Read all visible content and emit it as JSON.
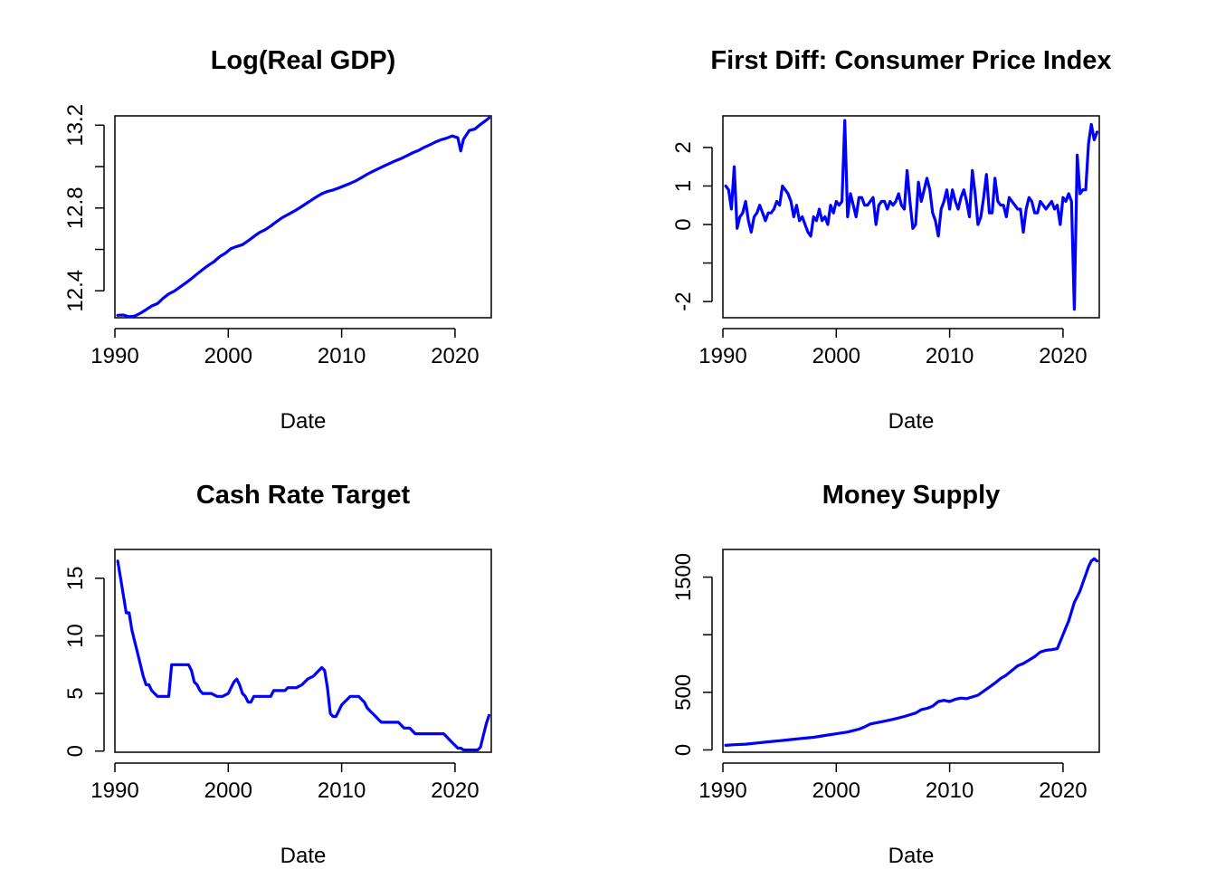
{
  "chart_data": [
    {
      "type": "line",
      "title": "Log(Real GDP)",
      "xlabel": "Date",
      "ylabel": "",
      "color": "#0000ff",
      "xlim": [
        1990,
        2023.2
      ],
      "ylim": [
        12.27,
        13.245
      ],
      "xticks": [
        1990,
        2000,
        2010,
        2020
      ],
      "xtick_labels": [
        "1990",
        "2000",
        "2010",
        "2020"
      ],
      "yticks": [
        12.4,
        12.6,
        12.8,
        13.0,
        13.2
      ],
      "ytick_labels": [
        "12.4",
        "",
        "12.8",
        "",
        "13.2"
      ],
      "x": [
        1990.25,
        1990.75,
        1991.25,
        1991.75,
        1992.25,
        1992.75,
        1993.25,
        1993.75,
        1994.25,
        1994.75,
        1995.25,
        1995.75,
        1996.25,
        1996.75,
        1997.25,
        1997.75,
        1998.25,
        1998.75,
        1999.25,
        1999.75,
        2000.25,
        2000.75,
        2001.25,
        2001.75,
        2002.25,
        2002.75,
        2003.25,
        2003.75,
        2004.25,
        2004.75,
        2005.25,
        2005.75,
        2006.25,
        2006.75,
        2007.25,
        2007.75,
        2008.25,
        2008.75,
        2009.25,
        2009.75,
        2010.25,
        2010.75,
        2011.25,
        2011.75,
        2012.25,
        2012.75,
        2013.25,
        2013.75,
        2014.25,
        2014.75,
        2015.25,
        2015.75,
        2016.25,
        2016.75,
        2017.25,
        2017.75,
        2018.25,
        2018.75,
        2019.25,
        2019.75,
        2020.25,
        2020.5,
        2020.75,
        2021.25,
        2021.75,
        2022.25,
        2022.75,
        2023.0
      ],
      "y": [
        12.282,
        12.283,
        12.275,
        12.278,
        12.292,
        12.309,
        12.327,
        12.338,
        12.364,
        12.385,
        12.399,
        12.418,
        12.438,
        12.459,
        12.481,
        12.503,
        12.523,
        12.541,
        12.565,
        12.582,
        12.604,
        12.614,
        12.623,
        12.641,
        12.662,
        12.682,
        12.695,
        12.713,
        12.734,
        12.753,
        12.768,
        12.783,
        12.799,
        12.817,
        12.835,
        12.853,
        12.869,
        12.88,
        12.887,
        12.897,
        12.908,
        12.919,
        12.931,
        12.947,
        12.963,
        12.977,
        12.99,
        13.003,
        13.016,
        13.028,
        13.039,
        13.052,
        13.066,
        13.077,
        13.092,
        13.104,
        13.118,
        13.129,
        13.137,
        13.148,
        13.139,
        13.076,
        13.132,
        13.174,
        13.181,
        13.204,
        13.224,
        13.235
      ]
    },
    {
      "type": "line",
      "title": "First Diff: Consumer Price Index",
      "xlabel": "Date",
      "ylabel": "",
      "color": "#0000ff",
      "xlim": [
        1990,
        2023.2
      ],
      "ylim": [
        -2.42,
        2.82
      ],
      "xticks": [
        1990,
        2000,
        2010,
        2020
      ],
      "xtick_labels": [
        "1990",
        "2000",
        "2010",
        "2020"
      ],
      "yticks": [
        -2,
        -1,
        0,
        1,
        2
      ],
      "ytick_labels": [
        "-2",
        "",
        "0",
        "1",
        "2"
      ],
      "x": [
        1990.25,
        1990.5,
        1990.75,
        1991.0,
        1991.25,
        1991.5,
        1991.75,
        1992.0,
        1992.25,
        1992.5,
        1992.75,
        1993.0,
        1993.25,
        1993.5,
        1993.75,
        1994.0,
        1994.25,
        1994.5,
        1994.75,
        1995.0,
        1995.25,
        1995.5,
        1995.75,
        1996.0,
        1996.25,
        1996.5,
        1996.75,
        1997.0,
        1997.25,
        1997.5,
        1997.75,
        1998.0,
        1998.25,
        1998.5,
        1998.75,
        1999.0,
        1999.25,
        1999.5,
        1999.75,
        2000.0,
        2000.25,
        2000.5,
        2000.75,
        2001.0,
        2001.25,
        2001.5,
        2001.75,
        2002.0,
        2002.25,
        2002.5,
        2002.75,
        2003.0,
        2003.25,
        2003.5,
        2003.75,
        2004.0,
        2004.25,
        2004.5,
        2004.75,
        2005.0,
        2005.25,
        2005.5,
        2005.75,
        2006.0,
        2006.25,
        2006.5,
        2006.75,
        2007.0,
        2007.25,
        2007.5,
        2007.75,
        2008.0,
        2008.25,
        2008.5,
        2008.75,
        2009.0,
        2009.25,
        2009.5,
        2009.75,
        2010.0,
        2010.25,
        2010.5,
        2010.75,
        2011.0,
        2011.25,
        2011.5,
        2011.75,
        2012.0,
        2012.25,
        2012.5,
        2012.75,
        2013.0,
        2013.25,
        2013.5,
        2013.75,
        2014.0,
        2014.25,
        2014.5,
        2014.75,
        2015.0,
        2015.25,
        2015.5,
        2015.75,
        2016.0,
        2016.25,
        2016.5,
        2016.75,
        2017.0,
        2017.25,
        2017.5,
        2017.75,
        2018.0,
        2018.25,
        2018.5,
        2018.75,
        2019.0,
        2019.25,
        2019.5,
        2019.75,
        2020.0,
        2020.25,
        2020.5,
        2020.75,
        2021.0,
        2021.25,
        2021.5,
        2021.75,
        2022.0,
        2022.25,
        2022.5,
        2022.75,
        2023.0
      ],
      "y": [
        1.0,
        0.9,
        0.4,
        1.5,
        -0.1,
        0.2,
        0.3,
        0.6,
        0.1,
        -0.2,
        0.2,
        0.3,
        0.5,
        0.3,
        0.1,
        0.3,
        0.3,
        0.4,
        0.6,
        0.5,
        1.0,
        0.9,
        0.8,
        0.6,
        0.2,
        0.5,
        0.1,
        0.2,
        0.0,
        -0.2,
        -0.3,
        0.2,
        0.1,
        0.4,
        0.1,
        0.2,
        0.0,
        0.5,
        0.3,
        0.6,
        0.5,
        0.6,
        2.7,
        0.2,
        0.8,
        0.5,
        0.2,
        0.7,
        0.7,
        0.5,
        0.5,
        0.6,
        0.7,
        0.0,
        0.5,
        0.6,
        0.6,
        0.4,
        0.6,
        0.5,
        0.6,
        0.8,
        0.5,
        0.4,
        1.4,
        0.6,
        -0.1,
        0.0,
        1.1,
        0.6,
        0.9,
        1.2,
        0.9,
        0.3,
        0.1,
        -0.3,
        0.4,
        0.6,
        0.9,
        0.4,
        0.9,
        0.6,
        0.4,
        0.7,
        0.9,
        0.6,
        0.2,
        1.4,
        0.8,
        0.0,
        0.2,
        0.7,
        1.3,
        0.3,
        0.3,
        1.2,
        0.6,
        0.5,
        0.5,
        0.2,
        0.7,
        0.6,
        0.5,
        0.4,
        0.4,
        -0.2,
        0.4,
        0.7,
        0.6,
        0.3,
        0.3,
        0.6,
        0.5,
        0.4,
        0.5,
        0.6,
        0.4,
        0.5,
        0.0,
        0.7,
        0.6,
        0.8,
        0.6,
        -2.2,
        1.8,
        0.8,
        0.9,
        0.9,
        2.1,
        2.6,
        2.2,
        2.4
      ]
    },
    {
      "type": "line",
      "title": "Cash Rate Target",
      "xlabel": "Date",
      "ylabel": "",
      "color": "#0000ff",
      "xlim": [
        1990,
        2023.2
      ],
      "ylim": [
        -0.1,
        17.5
      ],
      "xticks": [
        1990,
        2000,
        2010,
        2020
      ],
      "xtick_labels": [
        "1990",
        "2000",
        "2010",
        "2020"
      ],
      "yticks": [
        0,
        5,
        10,
        15
      ],
      "ytick_labels": [
        "0",
        "5",
        "10",
        "15"
      ],
      "x": [
        1990.25,
        1990.5,
        1990.75,
        1991.0,
        1991.25,
        1991.5,
        1991.75,
        1992.0,
        1992.25,
        1992.5,
        1992.75,
        1993.0,
        1993.25,
        1993.5,
        1993.75,
        1994.0,
        1994.25,
        1994.5,
        1994.75,
        1995.0,
        1995.5,
        1996.0,
        1996.5,
        1996.75,
        1997.0,
        1997.25,
        1997.5,
        1997.75,
        1998.0,
        1998.5,
        1999.0,
        1999.5,
        2000.0,
        2000.25,
        2000.5,
        2000.75,
        2001.0,
        2001.25,
        2001.5,
        2001.75,
        2002.0,
        2002.25,
        2002.5,
        2003.0,
        2003.5,
        2003.75,
        2004.0,
        2005.0,
        2005.25,
        2006.0,
        2006.5,
        2007.0,
        2007.5,
        2008.0,
        2008.25,
        2008.5,
        2008.75,
        2009.0,
        2009.25,
        2009.5,
        2009.75,
        2010.0,
        2010.25,
        2010.5,
        2010.75,
        2011.0,
        2011.5,
        2011.75,
        2012.0,
        2012.25,
        2012.5,
        2012.75,
        2013.0,
        2013.25,
        2013.5,
        2013.75,
        2014.0,
        2015.0,
        2015.25,
        2015.5,
        2016.0,
        2016.25,
        2016.5,
        2016.75,
        2017.0,
        2018.0,
        2019.0,
        2019.25,
        2019.5,
        2019.75,
        2020.0,
        2020.25,
        2020.5,
        2020.75,
        2021.0,
        2021.5,
        2022.0,
        2022.25,
        2022.5,
        2022.75,
        2023.0
      ],
      "y": [
        16.5,
        15.0,
        13.5,
        12.0,
        12.0,
        10.5,
        9.5,
        8.5,
        7.5,
        6.5,
        5.75,
        5.75,
        5.25,
        5.0,
        4.75,
        4.75,
        4.75,
        4.75,
        4.75,
        7.5,
        7.5,
        7.5,
        7.5,
        7.0,
        6.0,
        5.75,
        5.25,
        5.0,
        5.0,
        5.0,
        4.75,
        4.75,
        5.0,
        5.5,
        6.0,
        6.25,
        5.75,
        5.0,
        4.75,
        4.25,
        4.25,
        4.75,
        4.75,
        4.75,
        4.75,
        4.75,
        5.25,
        5.25,
        5.5,
        5.5,
        5.75,
        6.25,
        6.5,
        7.0,
        7.25,
        7.0,
        5.5,
        3.25,
        3.0,
        3.0,
        3.5,
        4.0,
        4.25,
        4.5,
        4.75,
        4.75,
        4.75,
        4.5,
        4.25,
        3.75,
        3.5,
        3.25,
        3.0,
        2.75,
        2.5,
        2.5,
        2.5,
        2.5,
        2.25,
        2.0,
        2.0,
        1.75,
        1.5,
        1.5,
        1.5,
        1.5,
        1.5,
        1.25,
        1.0,
        0.75,
        0.5,
        0.25,
        0.25,
        0.1,
        0.1,
        0.1,
        0.1,
        0.35,
        1.35,
        2.35,
        3.1
      ]
    },
    {
      "type": "line",
      "title": "Money Supply",
      "xlabel": "Date",
      "ylabel": "",
      "color": "#0000ff",
      "xlim": [
        1990,
        2023.2
      ],
      "ylim": [
        -20,
        1740
      ],
      "xticks": [
        1990,
        2000,
        2010,
        2020
      ],
      "xtick_labels": [
        "1990",
        "2000",
        "2010",
        "2020"
      ],
      "yticks": [
        0,
        500,
        1000,
        1500
      ],
      "ytick_labels": [
        "0",
        "500",
        "",
        "1500"
      ],
      "x": [
        1990.25,
        1991.0,
        1992.0,
        1993.0,
        1994.0,
        1995.0,
        1996.0,
        1997.0,
        1998.0,
        1999.0,
        2000.0,
        2001.0,
        2002.0,
        2002.5,
        2003.0,
        2004.0,
        2005.0,
        2006.0,
        2007.0,
        2007.5,
        2008.0,
        2008.5,
        2009.0,
        2009.5,
        2010.0,
        2010.5,
        2011.0,
        2011.5,
        2012.0,
        2012.5,
        2013.0,
        2013.5,
        2014.0,
        2014.5,
        2015.0,
        2015.5,
        2016.0,
        2016.5,
        2017.0,
        2017.5,
        2018.0,
        2018.5,
        2019.0,
        2019.5,
        2020.0,
        2020.25,
        2020.5,
        2020.75,
        2021.0,
        2021.25,
        2021.5,
        2021.75,
        2022.0,
        2022.25,
        2022.5,
        2022.75,
        2023.0
      ],
      "y": [
        40,
        45,
        50,
        60,
        70,
        80,
        90,
        100,
        110,
        125,
        140,
        155,
        180,
        200,
        225,
        245,
        265,
        290,
        320,
        350,
        360,
        380,
        420,
        430,
        420,
        440,
        450,
        445,
        460,
        475,
        510,
        545,
        580,
        620,
        650,
        690,
        730,
        750,
        780,
        810,
        850,
        865,
        870,
        880,
        1000,
        1060,
        1120,
        1200,
        1280,
        1330,
        1380,
        1450,
        1520,
        1590,
        1640,
        1660,
        1640
      ]
    }
  ]
}
